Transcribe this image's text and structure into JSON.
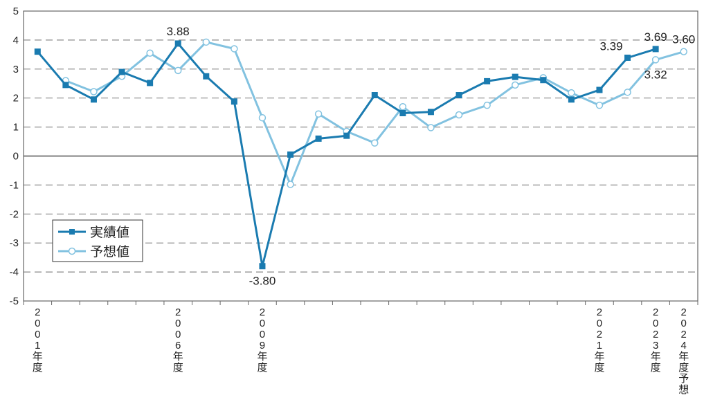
{
  "chart_data": {
    "type": "line",
    "title": "",
    "xlabel": "",
    "ylabel": "",
    "ylim": [
      -5,
      5
    ],
    "y_ticks": [
      "5",
      "4",
      "3",
      "2",
      "1",
      "0",
      "-1",
      "-2",
      "-3",
      "-4",
      "-5"
    ],
    "grid": "horizontal dashed",
    "legend_position": "lower-left",
    "x_tick_labels": [
      {
        "index": 0,
        "text": "2001年度"
      },
      {
        "index": 5,
        "text": "2006年度"
      },
      {
        "index": 8,
        "text": "2009年度"
      },
      {
        "index": 20,
        "text": "2021年度"
      },
      {
        "index": 22,
        "text": "2023年度"
      },
      {
        "index": 23,
        "text": "2024年度予想"
      }
    ],
    "series": [
      {
        "name": "実績値",
        "color": "#1a7bb0",
        "marker": "filled-square",
        "values": [
          3.6,
          2.45,
          1.95,
          2.9,
          2.52,
          3.88,
          2.75,
          1.88,
          -3.8,
          0.05,
          0.6,
          0.7,
          2.1,
          1.48,
          1.52,
          2.1,
          2.58,
          2.73,
          2.62,
          1.95,
          2.28,
          3.39,
          3.69,
          null
        ]
      },
      {
        "name": "予想値",
        "color": "#82c2e0",
        "marker": "open-circle",
        "values": [
          null,
          2.6,
          2.22,
          2.75,
          3.55,
          2.95,
          3.93,
          3.7,
          1.32,
          -0.98,
          1.45,
          0.85,
          0.45,
          1.7,
          0.98,
          1.42,
          1.75,
          2.45,
          2.7,
          2.18,
          1.75,
          2.2,
          3.32,
          3.6
        ]
      }
    ],
    "data_labels": [
      {
        "series": 0,
        "index": 5,
        "text": "3.88",
        "pos": "above"
      },
      {
        "series": 0,
        "index": 8,
        "text": "-3.80",
        "pos": "below"
      },
      {
        "series": 0,
        "index": 21,
        "text": "3.39",
        "pos": "above-left"
      },
      {
        "series": 0,
        "index": 22,
        "text": "3.69",
        "pos": "above"
      },
      {
        "series": 1,
        "index": 22,
        "text": "3.32",
        "pos": "below"
      },
      {
        "series": 1,
        "index": 23,
        "text": "3.60",
        "pos": "above"
      }
    ]
  }
}
